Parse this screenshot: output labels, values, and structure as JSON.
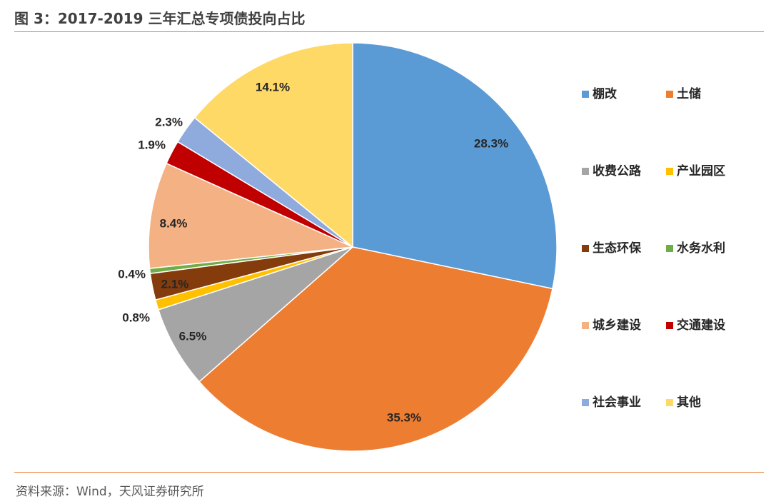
{
  "title": "图 3：2017-2019 三年汇总专项债投向占比",
  "source": "资料来源：Wind，天风证券研究所",
  "chart_data": {
    "type": "pie",
    "start_angle_deg": 0,
    "direction": "clockwise",
    "legend_position": "right",
    "slices": [
      {
        "name": "棚改",
        "value": 28.3,
        "label": "28.3%",
        "color": "#5b9bd5"
      },
      {
        "name": "土储",
        "value": 35.3,
        "label": "35.3%",
        "color": "#ed7d31"
      },
      {
        "name": "收费公路",
        "value": 6.5,
        "label": "6.5%",
        "color": "#a5a5a5"
      },
      {
        "name": "产业园区",
        "value": 0.8,
        "label": "0.8%",
        "color": "#ffc000"
      },
      {
        "name": "生态环保",
        "value": 2.1,
        "label": "2.1%",
        "color": "#843c0c"
      },
      {
        "name": "水务水利",
        "value": 0.4,
        "label": "0.4%",
        "color": "#70ad47"
      },
      {
        "name": "城乡建设",
        "value": 8.4,
        "label": "8.4%",
        "color": "#f4b183"
      },
      {
        "name": "交通建设",
        "value": 1.9,
        "label": "1.9%",
        "color": "#c00000"
      },
      {
        "name": "社会事业",
        "value": 2.3,
        "label": "2.3%",
        "color": "#8faadc"
      },
      {
        "name": "其他",
        "value": 14.1,
        "label": "14.1%",
        "color": "#ffd966"
      }
    ]
  }
}
